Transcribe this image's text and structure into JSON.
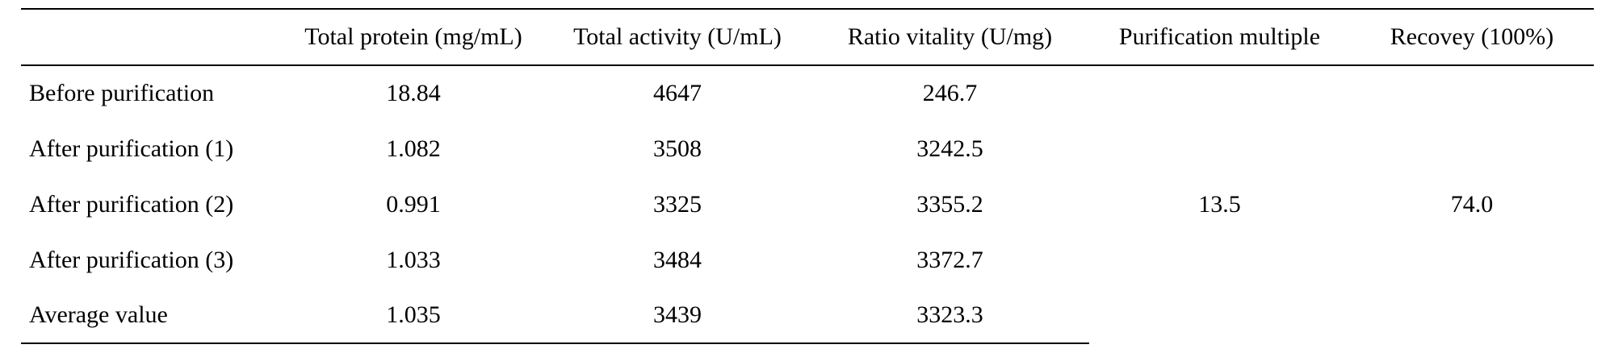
{
  "table": {
    "headers": [
      "",
      "Total protein (mg/mL)",
      "Total activity (U/mL)",
      "Ratio vitality (U/mg)",
      "Purification multiple",
      "Recovey (100%)"
    ],
    "rows": [
      {
        "label": "Before purification",
        "total_protein": "18.84",
        "total_activity": "4647",
        "ratio_vitality": "246.7"
      },
      {
        "label": "After purification (1)",
        "total_protein": "1.082",
        "total_activity": "3508",
        "ratio_vitality": "3242.5"
      },
      {
        "label": "After purification (2)",
        "total_protein": "0.991",
        "total_activity": "3325",
        "ratio_vitality": "3355.2"
      },
      {
        "label": "After purification (3)",
        "total_protein": "1.033",
        "total_activity": "3484",
        "ratio_vitality": "3372.7"
      },
      {
        "label": "Average value",
        "total_protein": "1.035",
        "total_activity": "3439",
        "ratio_vitality": "3323.3"
      }
    ],
    "merged": {
      "purification_multiple": "13.5",
      "recovery": "74.0"
    }
  }
}
